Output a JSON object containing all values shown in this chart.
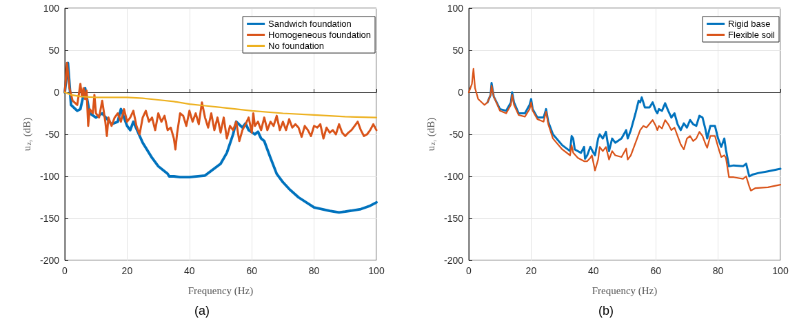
{
  "chart_data": [
    {
      "type": "line",
      "xlabel": "Frequency (Hz)",
      "ylabel": "u$_{z₃}$ (dB)",
      "annotations": [
        "(a)"
      ],
      "xlim": [
        0,
        100
      ],
      "xticks": [
        0,
        20,
        40,
        60,
        80,
        100
      ],
      "ylim": [
        -200,
        100
      ],
      "yticks": [
        -200,
        -150,
        -100,
        -50,
        0,
        50,
        100
      ],
      "grid": true,
      "legend": "top right",
      "marker": "none",
      "line_style": "solid",
      "series": [
        {
          "name": "Sandwich foundation",
          "color": "#0072bd",
          "x": [
            0,
            1,
            2,
            4,
            5,
            6.5,
            8,
            10,
            12,
            15,
            17,
            18,
            20,
            21,
            22,
            25,
            28,
            30,
            33,
            33.5,
            35,
            37,
            40,
            45,
            50,
            52,
            54,
            55,
            57,
            58,
            59,
            61,
            62,
            63,
            64,
            66,
            68,
            70,
            72,
            75,
            80,
            85,
            88,
            90,
            95,
            98,
            100
          ],
          "values": [
            0,
            35,
            -15,
            -22,
            -20,
            5,
            -25,
            -30,
            -25,
            -38,
            -35,
            -20,
            -40,
            -45,
            -35,
            -60,
            -78,
            -88,
            -97,
            -100,
            -100,
            -101,
            -101,
            -99,
            -85,
            -72,
            -50,
            -35,
            -42,
            -37,
            -45,
            -50,
            -47,
            -55,
            -58,
            -78,
            -97,
            -107,
            -115,
            -125,
            -137,
            -141,
            -143,
            -142,
            -139,
            -135,
            -131
          ]
        },
        {
          "name": "Homogeneous foundation",
          "color": "#d95319",
          "x": [
            0,
            0.7,
            1.5,
            2.5,
            4,
            5,
            5.5,
            6,
            6.5,
            7,
            7.5,
            8,
            9,
            9.5,
            10,
            11,
            12,
            13,
            13.5,
            14,
            15,
            16,
            17,
            18,
            19,
            20,
            21,
            22,
            23,
            24,
            25,
            26,
            27,
            28,
            29,
            30,
            31,
            32,
            33,
            34,
            35,
            35.5,
            36,
            37,
            38,
            39,
            40,
            41,
            42,
            43,
            44,
            45,
            46,
            47,
            48,
            49,
            50,
            51,
            52,
            53,
            54,
            55,
            56,
            57,
            58,
            59,
            60,
            60.5,
            61,
            62,
            63,
            64,
            65,
            66,
            67,
            68,
            69,
            70,
            71,
            72,
            73,
            74,
            75,
            76,
            77,
            78,
            79,
            80,
            81,
            82,
            83,
            84,
            85,
            86,
            87,
            88,
            89,
            90,
            91,
            92,
            93,
            94,
            95,
            96,
            97,
            98,
            99,
            100
          ],
          "values": [
            0,
            35,
            5,
            -10,
            -15,
            10,
            -5,
            5,
            -8,
            2,
            -40,
            -20,
            -25,
            -3,
            -25,
            -30,
            -10,
            -35,
            -52,
            -30,
            -40,
            -30,
            -25,
            -35,
            -20,
            -35,
            -30,
            -22,
            -40,
            -50,
            -30,
            -22,
            -35,
            -30,
            -45,
            -25,
            -35,
            -28,
            -45,
            -42,
            -55,
            -68,
            -50,
            -25,
            -28,
            -40,
            -22,
            -35,
            -25,
            -38,
            -12,
            -30,
            -42,
            -25,
            -45,
            -30,
            -48,
            -30,
            -55,
            -40,
            -45,
            -35,
            -58,
            -45,
            -38,
            -30,
            -48,
            -25,
            -40,
            -35,
            -45,
            -30,
            -45,
            -35,
            -40,
            -28,
            -45,
            -35,
            -45,
            -32,
            -42,
            -38,
            -42,
            -53,
            -40,
            -45,
            -52,
            -40,
            -42,
            -38,
            -55,
            -42,
            -48,
            -45,
            -50,
            -38,
            -48,
            -52,
            -48,
            -45,
            -40,
            -35,
            -45,
            -52,
            -50,
            -45,
            -38,
            -45
          ]
        },
        {
          "name": "No foundation",
          "color": "#edb120",
          "x": [
            0,
            2,
            5,
            10,
            20,
            25,
            30,
            35,
            40,
            45,
            50,
            55,
            60,
            70,
            80,
            90,
            100
          ],
          "values": [
            0,
            -3,
            -5,
            -6,
            -6,
            -7,
            -9,
            -11,
            -14,
            -16,
            -18,
            -20,
            -22,
            -25,
            -27,
            -29,
            -30
          ]
        }
      ]
    },
    {
      "type": "line",
      "xlabel": "Frequency (Hz)",
      "ylabel": "u$_{z₁}$ (dB)",
      "annotations": [
        "(b)"
      ],
      "xlim": [
        0,
        100
      ],
      "xticks": [
        0,
        20,
        40,
        60,
        80,
        100
      ],
      "ylim": [
        -200,
        100
      ],
      "yticks": [
        -200,
        -150,
        -100,
        -50,
        0,
        50,
        100
      ],
      "grid": true,
      "legend": "top right",
      "marker": "none",
      "line_style": "solid",
      "series": [
        {
          "name": "Rigid base",
          "color": "#0072bd",
          "x": [
            6,
            7,
            7.3,
            8,
            10,
            12,
            13.5,
            13.9,
            14.5,
            16,
            18,
            19.5,
            20,
            20.5,
            22,
            24,
            24.8,
            25.5,
            27,
            30,
            32.5,
            33,
            33.5,
            34,
            36,
            37,
            37.3,
            38,
            39,
            40,
            40.5,
            41.5,
            42,
            43,
            44,
            45,
            46,
            47,
            49,
            50.5,
            51,
            52,
            53.5,
            54.5,
            55,
            55.5,
            56.5,
            58,
            59,
            60,
            60.5,
            61,
            62,
            63,
            64,
            65,
            66,
            67,
            68,
            69,
            70,
            71,
            72,
            73,
            74,
            75,
            76,
            76.5,
            77.5,
            79,
            80,
            81,
            82,
            82.5,
            83.5,
            85,
            88,
            89,
            90,
            91,
            93,
            96,
            100
          ],
          "values": [
            -12,
            -3,
            11,
            -5,
            -20,
            -22,
            -12,
            0,
            -12,
            -25,
            -25,
            -15,
            -8,
            -20,
            -30,
            -30,
            -20,
            -35,
            -50,
            -63,
            -70,
            -52,
            -55,
            -68,
            -72,
            -65,
            -79,
            -75,
            -65,
            -72,
            -75,
            -55,
            -50,
            -55,
            -47,
            -70,
            -55,
            -60,
            -55,
            -45,
            -55,
            -45,
            -25,
            -10,
            -12,
            -6,
            -18,
            -18,
            -12,
            -22,
            -25,
            -20,
            -22,
            -13,
            -22,
            -30,
            -25,
            -38,
            -45,
            -37,
            -42,
            -33,
            -38,
            -40,
            -28,
            -30,
            -45,
            -55,
            -40,
            -40,
            -55,
            -65,
            -55,
            -68,
            -88,
            -87,
            -88,
            -85,
            -100,
            -98,
            -96,
            -94,
            -91
          ]
        },
        {
          "name": "Flexible soil",
          "color": "#d95319",
          "x": [
            0,
            1,
            1.5,
            2,
            3,
            5,
            6,
            7,
            7.3,
            8,
            10,
            12,
            13.5,
            13.9,
            14.5,
            16,
            18,
            19.5,
            20,
            20.5,
            22,
            24,
            24.8,
            25.5,
            27,
            30,
            32.5,
            33,
            33.5,
            35,
            37,
            38,
            39,
            39.5,
            40.5,
            41.5,
            42,
            43,
            44,
            45,
            46,
            47,
            49,
            50.5,
            51,
            52,
            54,
            55,
            56,
            57,
            59,
            60,
            60.5,
            61,
            62,
            63,
            64,
            65,
            66,
            68,
            69,
            70,
            71,
            72,
            73,
            74,
            75,
            76,
            76.5,
            77.5,
            79,
            80,
            81,
            82,
            82.5,
            83.5,
            85,
            88,
            89,
            90,
            90.5,
            92,
            96,
            100
          ],
          "values": [
            0,
            10,
            28,
            5,
            -8,
            -15,
            -12,
            -3,
            8,
            -5,
            -22,
            -25,
            -15,
            -3,
            -15,
            -27,
            -29,
            -20,
            -12,
            -22,
            -32,
            -35,
            -23,
            -38,
            -55,
            -68,
            -75,
            -63,
            -72,
            -78,
            -82,
            -82,
            -78,
            -75,
            -93,
            -80,
            -65,
            -70,
            -65,
            -80,
            -70,
            -75,
            -77,
            -67,
            -80,
            -75,
            -55,
            -45,
            -40,
            -42,
            -33,
            -40,
            -45,
            -40,
            -43,
            -33,
            -38,
            -45,
            -42,
            -62,
            -68,
            -55,
            -52,
            -58,
            -55,
            -47,
            -52,
            -62,
            -66,
            -52,
            -52,
            -65,
            -77,
            -75,
            -78,
            -101,
            -101,
            -103,
            -100,
            -112,
            -117,
            -114,
            -113,
            -110
          ]
        }
      ]
    }
  ]
}
